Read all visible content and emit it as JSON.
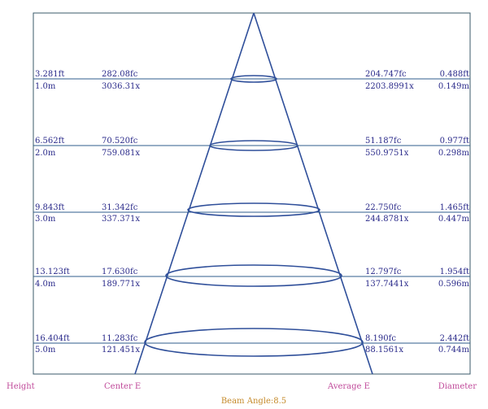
{
  "rows": [
    {
      "height_ft": "3.281ft",
      "height_m": "1.0m",
      "center_fc": "282.08fc",
      "center_lx": "3036.31x",
      "average_fc": "204.747fc",
      "average_lx": "2203.8991x",
      "diameter_ft": "0.488ft",
      "diameter_m": "0.149m"
    },
    {
      "height_ft": "6.562ft",
      "height_m": "2.0m",
      "center_fc": "70.520fc",
      "center_lx": "759.081x",
      "average_fc": "51.187fc",
      "average_lx": "550.9751x",
      "diameter_ft": "0.977ft",
      "diameter_m": "0.298m"
    },
    {
      "height_ft": "9.843ft",
      "height_m": "3.0m",
      "center_fc": "31.342fc",
      "center_lx": "337.371x",
      "average_fc": "22.750fc",
      "average_lx": "244.8781x",
      "diameter_ft": "1.465ft",
      "diameter_m": "0.447m"
    },
    {
      "height_ft": "13.123ft",
      "height_m": "4.0m",
      "center_fc": "17.630fc",
      "center_lx": "189.771x",
      "average_fc": "12.797fc",
      "average_lx": "137.7441x",
      "diameter_ft": "1.954ft",
      "diameter_m": "0.596m"
    },
    {
      "height_ft": "16.404ft",
      "height_m": "5.0m",
      "center_fc": "11.283fc",
      "center_lx": "121.451x",
      "average_fc": "8.190fc",
      "average_lx": "88.1561x",
      "diameter_ft": "2.442ft",
      "diameter_m": "0.744m"
    }
  ],
  "footer": {
    "height": "Height",
    "center_e": "Center E",
    "average_e": "Average E",
    "diameter": "Diameter"
  },
  "beam_angle": "Beam Angle:8.5",
  "colors": {
    "line": "#2f4f9a",
    "label": "#2a2a8a",
    "footer": "#c04a9a",
    "beam": "#c58a2a"
  }
}
